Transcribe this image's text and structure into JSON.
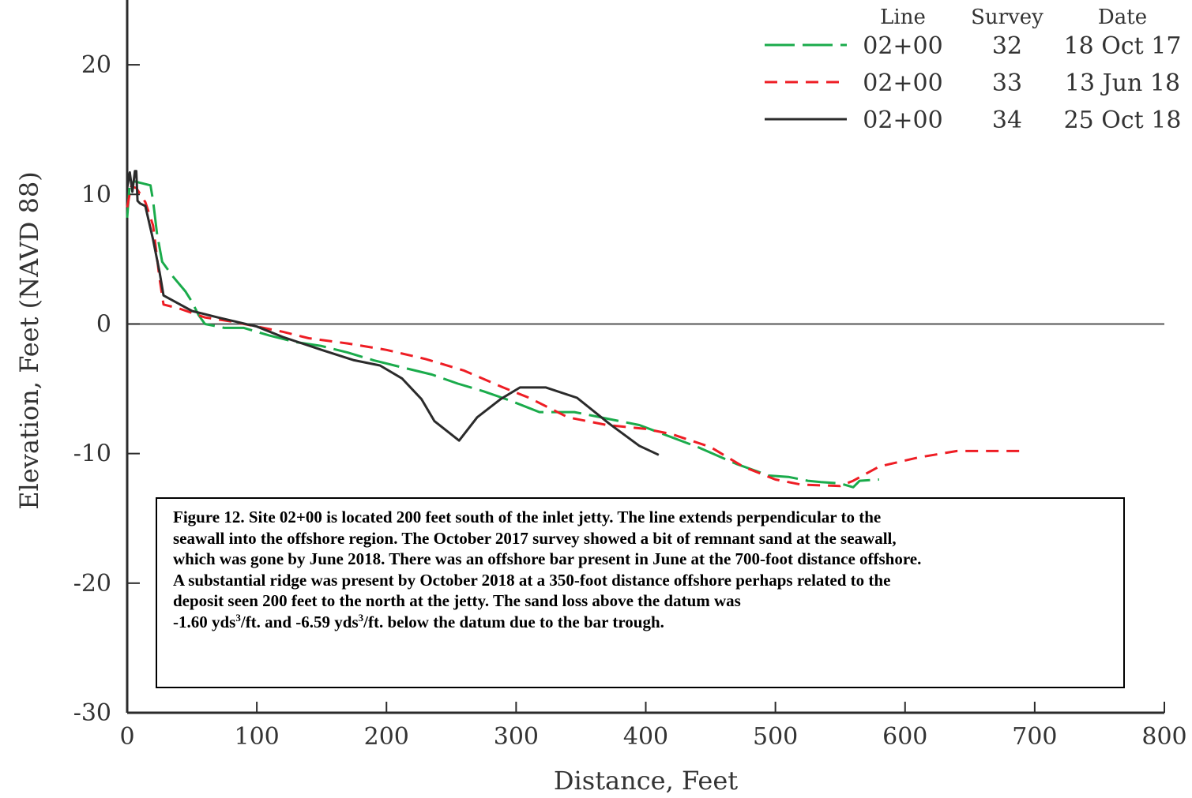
{
  "chart_data": {
    "type": "line",
    "xlabel": "Distance, Feet",
    "ylabel": "Elevation, Feet (NAVD 88)",
    "xlim": [
      0,
      800
    ],
    "ylim": [
      -30,
      25
    ],
    "x_ticks": [
      "0",
      "100",
      "200",
      "300",
      "400",
      "500",
      "600",
      "700",
      "800"
    ],
    "y_ticks": [
      "20",
      "10",
      "0",
      "-10",
      "-20",
      "-30"
    ],
    "zero_line": true,
    "legend": {
      "placement": "top-right",
      "headers": [
        "Line",
        "Survey",
        "Date"
      ]
    },
    "series": [
      {
        "line": "02+00",
        "survey": "32",
        "date": "18 Oct 17",
        "color": "#1aab4b",
        "style": "long-dash",
        "x": [
          0,
          2,
          6,
          18,
          20,
          23,
          27,
          35,
          45,
          50,
          55,
          60,
          75,
          90,
          110,
          130,
          150,
          170,
          190,
          210,
          235,
          255,
          275,
          295,
          318,
          345,
          395,
          440,
          470,
          495,
          510,
          525,
          535,
          550,
          560,
          565,
          580
        ],
        "y": [
          8.2,
          10.9,
          11.0,
          10.7,
          9.5,
          7.0,
          4.8,
          3.7,
          2.5,
          1.7,
          0.7,
          0.0,
          -0.3,
          -0.3,
          -0.9,
          -1.4,
          -1.7,
          -2.2,
          -2.8,
          -3.3,
          -3.9,
          -4.6,
          -5.2,
          -5.9,
          -6.8,
          -6.8,
          -7.8,
          -9.5,
          -10.8,
          -11.7,
          -11.8,
          -12.1,
          -12.2,
          -12.3,
          -12.6,
          -12.1,
          -12.0
        ]
      },
      {
        "line": "02+00",
        "survey": "33",
        "date": "13 Jun 18",
        "color": "#ee1d24",
        "style": "dash",
        "x": [
          0,
          3,
          7,
          14,
          20,
          25,
          28,
          40,
          60,
          80,
          100,
          120,
          140,
          170,
          200,
          230,
          260,
          290,
          310,
          340,
          370,
          400,
          420,
          450,
          475,
          500,
          520,
          550,
          560,
          580,
          610,
          640,
          660,
          690
        ],
        "y": [
          9.0,
          10.6,
          10.5,
          9.4,
          7.6,
          3.5,
          1.5,
          1.2,
          0.5,
          0.2,
          -0.2,
          -0.6,
          -1.1,
          -1.5,
          -2.0,
          -2.7,
          -3.6,
          -4.9,
          -5.7,
          -7.2,
          -7.8,
          -8.1,
          -8.5,
          -9.5,
          -11.0,
          -12.0,
          -12.4,
          -12.5,
          -12.1,
          -11.0,
          -10.3,
          -9.8,
          -9.8,
          -9.8
        ]
      },
      {
        "line": "02+00",
        "survey": "34",
        "date": "25 Oct 18",
        "color": "#2b2b2b",
        "style": "solid",
        "x": [
          0,
          2,
          4,
          6,
          7,
          8,
          10,
          14,
          20,
          25,
          28,
          50,
          70,
          100,
          120,
          150,
          175,
          195,
          212,
          227,
          237,
          256,
          270,
          288,
          303,
          323,
          347,
          372,
          395,
          410
        ],
        "y": [
          10.5,
          11.7,
          10.2,
          11.8,
          11.8,
          9.5,
          9.3,
          9.1,
          6.5,
          4.0,
          2.2,
          1.0,
          0.5,
          -0.2,
          -1.0,
          -2.0,
          -2.8,
          -3.2,
          -4.2,
          -5.8,
          -7.5,
          -9.0,
          -7.2,
          -5.8,
          -4.9,
          -4.9,
          -5.7,
          -7.7,
          -9.4,
          -10.1
        ]
      }
    ]
  },
  "caption": {
    "lines": [
      "Figure 12.  Site 02+00 is located 200 feet south of the inlet jetty.  The line extends perpendicular to the",
      "seawall into the offshore region.  The October 2017 survey showed a bit of remnant sand at the seawall,",
      "which was gone by June 2018.  There was an offshore bar present in June at the 700-foot distance offshore.",
      "A substantial ridge was present by October 2018 at a 350-foot distance offshore perhaps related to the",
      "deposit seen 200 feet to the north at the jetty.  The sand loss above the datum was"
    ],
    "last_line": {
      "part1": "-1.60 yds",
      "sup1": "3",
      "part2": "/ft. and -6.59 yds",
      "sup2": "3",
      "part3": "/ft. below the datum due to the bar trough."
    }
  }
}
